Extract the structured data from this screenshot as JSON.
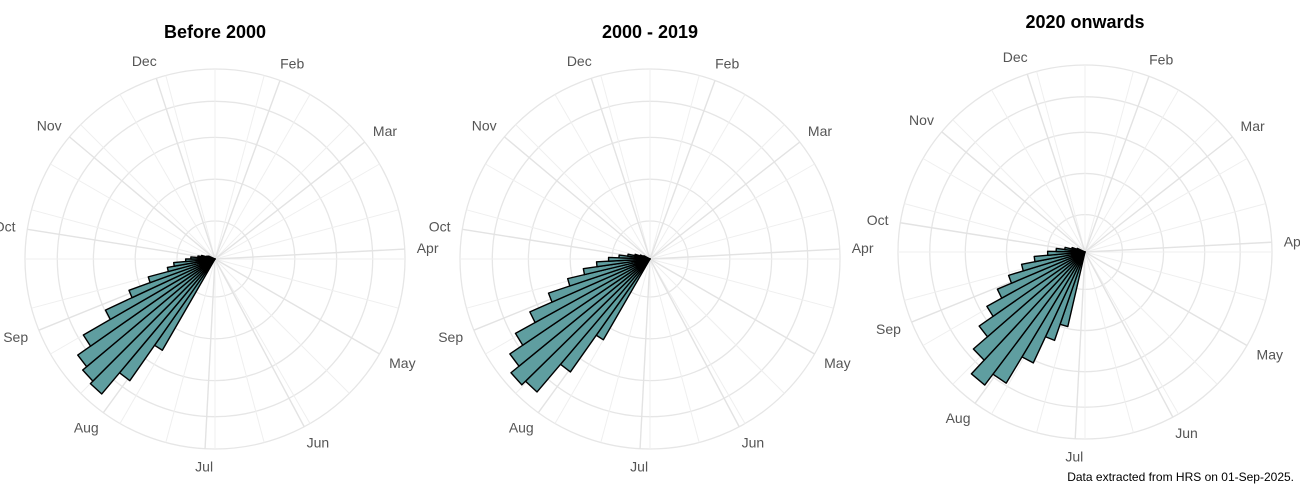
{
  "caption": "Data extracted from HRS on 01-Sep-2025.",
  "colors": {
    "bar_fill": "#5f9ea0",
    "bar_stroke": "#000000",
    "grid": "#e6e6e6",
    "label": "#555555"
  },
  "chart_data": [
    {
      "type": "bar",
      "projection": "polar",
      "title": "Before 2000",
      "month_labels": [
        "Feb",
        "Mar",
        "Apr",
        "May",
        "Jun",
        "Jul",
        "Aug",
        "Sep",
        "Oct",
        "Nov",
        "Dec"
      ],
      "month_angles_deg": [
        20,
        52,
        87,
        120,
        152,
        183,
        216,
        248,
        279,
        310,
        342
      ],
      "bars": {
        "start_angle_deg": 210,
        "end_angle_deg": 295,
        "values": [
          6.1,
          8.6,
          10.2,
          10.0,
          9.7,
          8.8,
          7.0,
          5.3,
          4.0,
          2.8,
          2.4,
          1.7,
          1.4,
          1.0,
          0.8,
          0.5,
          0.4
        ],
        "max": 11
      }
    },
    {
      "type": "bar",
      "projection": "polar",
      "title": "2000 - 2019",
      "month_labels": [
        "Dec",
        "Feb",
        "Mar",
        "Apr",
        "May",
        "Jun",
        "Jul",
        "Aug",
        "Sep",
        "Oct",
        "Nov"
      ],
      "month_angles_deg": [
        342,
        20,
        52,
        87,
        120,
        152,
        183,
        216,
        248,
        279,
        310
      ],
      "bars": {
        "start_angle_deg": 210,
        "end_angle_deg": 298,
        "values": [
          5.4,
          8.0,
          10.1,
          10.4,
          9.8,
          8.9,
          7.6,
          6.2,
          4.9,
          3.9,
          3.1,
          2.4,
          1.8,
          1.3,
          0.9,
          0.6,
          0.4
        ],
        "max": 11
      }
    },
    {
      "type": "bar",
      "projection": "polar",
      "title": "2020 onwards",
      "month_labels": [
        "Dec",
        "Feb",
        "Mar",
        "Apr",
        "May",
        "Jun",
        "Jul",
        "Aug",
        "Sep",
        "Oct",
        "Nov"
      ],
      "month_angles_deg": [
        342,
        20,
        52,
        87,
        120,
        152,
        183,
        216,
        248,
        279,
        310
      ],
      "bars": {
        "start_angle_deg": 193,
        "end_angle_deg": 295,
        "values": [
          4.5,
          5.5,
          7.2,
          9.0,
          9.8,
          8.7,
          7.6,
          6.6,
          5.6,
          4.7,
          3.8,
          3.0,
          2.2,
          1.7,
          1.2,
          0.8,
          0.5
        ],
        "max": 11
      }
    }
  ]
}
